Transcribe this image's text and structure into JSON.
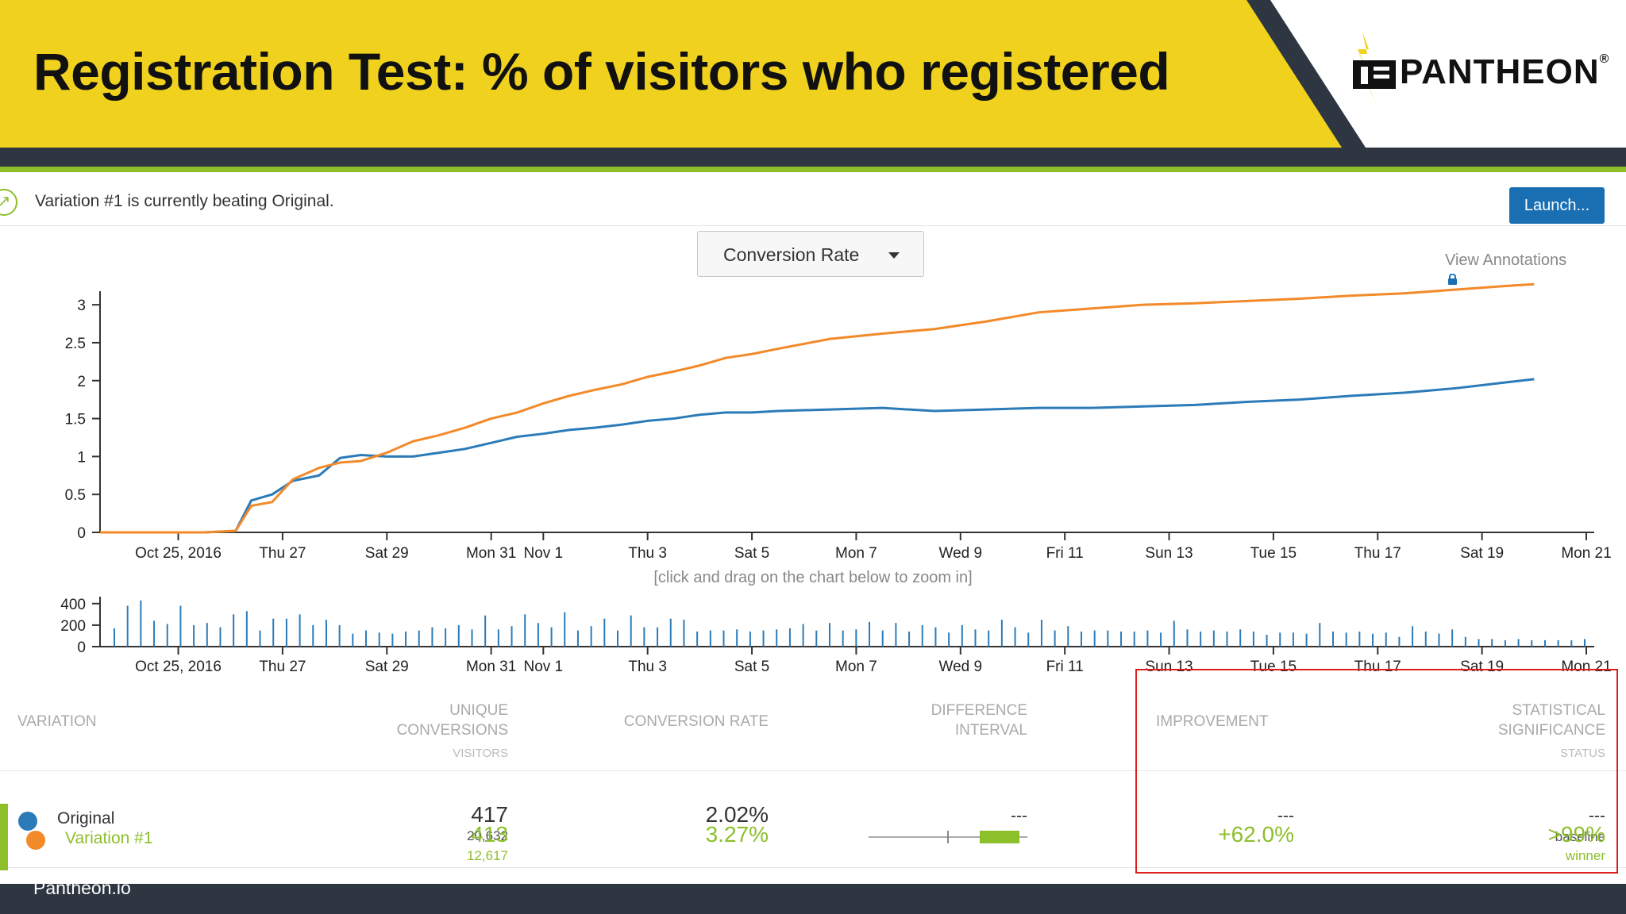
{
  "slide": {
    "title": "Registration Test: % of visitors who registered",
    "footer": "Pantheon.io",
    "logo_text": "PANTHEON",
    "logo_mark": "®",
    "colors": {
      "banner": "#f0d21e",
      "dark": "#2d3641",
      "accent_green": "#8cbf2a",
      "original": "#2b7bb9",
      "variation": "#f28a2a"
    }
  },
  "notice": {
    "text": "Variation #1 is currently beating Original.",
    "icon": "trend-up-icon"
  },
  "toolbar": {
    "launch_label": "Launch...",
    "metric_selected": "Conversion Rate",
    "view_annotations": "View Annotations"
  },
  "zoom_hint": "[click and drag on the chart below to zoom in]",
  "table": {
    "headers": {
      "variation": "VARIATION",
      "unique_conversions_line1": "UNIQUE",
      "unique_conversions_line2": "CONVERSIONS",
      "unique_conversions_sub": "VISITORS",
      "conversion_rate": "CONVERSION RATE",
      "difference_line1": "DIFFERENCE",
      "difference_line2": "INTERVAL",
      "improvement": "IMPROVEMENT",
      "significance_line1": "STATISTICAL",
      "significance_line2": "SIGNIFICANCE",
      "significance_sub": "STATUS"
    },
    "rows": [
      {
        "name": "Original",
        "conversions": "417",
        "visitors": "20,632",
        "rate": "2.02%",
        "difference": "---",
        "improvement": "---",
        "significance": "---",
        "status": "baseline"
      },
      {
        "name": "Variation #1",
        "conversions": "413",
        "visitors": "12,617",
        "rate": "3.27%",
        "difference": "",
        "improvement": "+62.0%",
        "significance": ">99%",
        "status": "winner"
      }
    ],
    "difference_interval": {
      "low": 0.28,
      "mid": 0.5,
      "bar_start": 0.7,
      "bar_end": 0.95
    }
  },
  "chart_data": [
    {
      "type": "line",
      "title": "",
      "xlabel": "",
      "ylabel": "",
      "ylim": [
        0,
        3.2
      ],
      "yticks": [
        "0",
        "0.5",
        "1",
        "1.5",
        "2",
        "2.5",
        "3"
      ],
      "ytick_values": [
        0,
        0.5,
        1,
        1.5,
        2,
        2.5,
        3
      ],
      "xlim": [
        0,
        27.5
      ],
      "xticks": [
        {
          "label": "Oct 25, 2016",
          "x": 1.5
        },
        {
          "label": "Thu 27",
          "x": 3.5
        },
        {
          "label": "Sat 29",
          "x": 5.5
        },
        {
          "label": "Mon 31",
          "x": 7.5
        },
        {
          "label": "Nov 1",
          "x": 8.5
        },
        {
          "label": "Thu 3",
          "x": 10.5
        },
        {
          "label": "Sat 5",
          "x": 12.5
        },
        {
          "label": "Mon 7",
          "x": 14.5
        },
        {
          "label": "Wed 9",
          "x": 16.5
        },
        {
          "label": "Fri 11",
          "x": 18.5
        },
        {
          "label": "Sun 13",
          "x": 20.5
        },
        {
          "label": "Tue 15",
          "x": 22.5
        },
        {
          "label": "Thu 17",
          "x": 24.5
        },
        {
          "label": "Sat 19",
          "x": 26.5
        },
        {
          "label": "Mon 21",
          "x": 28.5
        }
      ],
      "series": [
        {
          "name": "Original",
          "color": "#2b7bb9",
          "x": [
            0,
            1,
            2,
            2.6,
            2.9,
            3.3,
            3.7,
            4.2,
            4.6,
            5.0,
            5.5,
            6.0,
            6.5,
            7.0,
            7.5,
            8.0,
            8.5,
            9.0,
            9.5,
            10.0,
            10.5,
            11.0,
            11.5,
            12.0,
            12.5,
            13.0,
            14.0,
            15.0,
            16.0,
            17.0,
            18.0,
            19.0,
            20.0,
            21.0,
            22.0,
            23.0,
            24.0,
            25.0,
            26.0,
            27.0,
            27.5
          ],
          "y": [
            0,
            0,
            0,
            0.02,
            0.42,
            0.5,
            0.68,
            0.75,
            0.98,
            1.02,
            1.0,
            1.0,
            1.05,
            1.1,
            1.18,
            1.26,
            1.3,
            1.35,
            1.38,
            1.42,
            1.47,
            1.5,
            1.55,
            1.58,
            1.58,
            1.6,
            1.62,
            1.64,
            1.6,
            1.62,
            1.64,
            1.64,
            1.66,
            1.68,
            1.72,
            1.75,
            1.8,
            1.84,
            1.9,
            1.98,
            2.02
          ]
        },
        {
          "name": "Variation #1",
          "color": "#f28a2a",
          "x": [
            0,
            1,
            2,
            2.6,
            2.9,
            3.3,
            3.7,
            4.2,
            4.6,
            5.0,
            5.5,
            6.0,
            6.5,
            7.0,
            7.5,
            8.0,
            8.5,
            9.0,
            9.5,
            10.0,
            10.5,
            11.0,
            11.5,
            12.0,
            12.5,
            13.0,
            14.0,
            15.0,
            16.0,
            17.0,
            18.0,
            19.0,
            20.0,
            21.0,
            22.0,
            23.0,
            24.0,
            25.0,
            26.0,
            27.0,
            27.5
          ],
          "y": [
            0,
            0,
            0,
            0.02,
            0.35,
            0.4,
            0.7,
            0.85,
            0.92,
            0.94,
            1.05,
            1.2,
            1.28,
            1.38,
            1.5,
            1.58,
            1.7,
            1.8,
            1.88,
            1.95,
            2.05,
            2.12,
            2.2,
            2.3,
            2.35,
            2.42,
            2.55,
            2.62,
            2.68,
            2.78,
            2.9,
            2.95,
            3.0,
            3.02,
            3.05,
            3.08,
            3.12,
            3.15,
            3.2,
            3.25,
            3.27
          ]
        }
      ]
    },
    {
      "type": "bar",
      "title": "",
      "ylim": [
        0,
        450
      ],
      "yticks": [
        "0",
        "200",
        "400"
      ],
      "ytick_values": [
        0,
        200,
        400
      ],
      "xticks": [
        "Oct 25, 2016",
        "Thu 27",
        "Sat 29",
        "Mon 31",
        "Nov 1",
        "Thu 3",
        "Sat 5",
        "Mon 7",
        "Wed 9",
        "Fri 11",
        "Sun 13",
        "Tue 15",
        "Thu 17",
        "Sat 19",
        "Mon 21"
      ],
      "values": [
        170,
        380,
        430,
        240,
        210,
        380,
        200,
        220,
        180,
        300,
        330,
        150,
        260,
        260,
        300,
        200,
        250,
        200,
        120,
        150,
        130,
        120,
        140,
        150,
        180,
        170,
        200,
        160,
        290,
        160,
        190,
        300,
        220,
        180,
        320,
        150,
        190,
        260,
        150,
        290,
        180,
        180,
        260,
        250,
        140,
        150,
        150,
        160,
        140,
        150,
        160,
        170,
        210,
        150,
        220,
        150,
        160,
        230,
        150,
        220,
        140,
        200,
        180,
        130,
        200,
        160,
        150,
        250,
        180,
        130,
        250,
        150,
        190,
        140,
        150,
        150,
        140,
        140,
        150,
        130,
        240,
        160,
        140,
        150,
        140,
        160,
        140,
        110,
        130,
        130,
        120,
        220,
        140,
        130,
        140,
        120,
        130,
        90,
        190,
        140,
        120,
        160,
        90,
        70,
        70,
        60,
        70,
        60,
        60,
        60,
        60,
        70
      ]
    }
  ]
}
